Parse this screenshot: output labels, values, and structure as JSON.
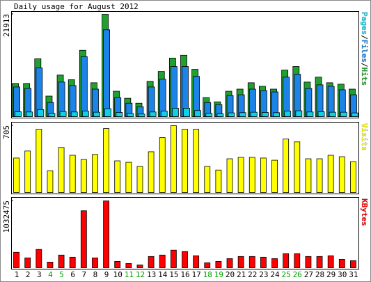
{
  "title": "Daily usage for August 2012",
  "legend_separator": "/",
  "highlight_categories": [
    "4",
    "5",
    "11",
    "12",
    "18",
    "19",
    "25",
    "26"
  ],
  "highlight_color": "#00a000",
  "chart_data": [
    {
      "type": "bar",
      "ylim": [
        0,
        21913
      ],
      "yticks": [
        21913
      ],
      "categories": [
        "1",
        "2",
        "3",
        "4",
        "5",
        "6",
        "7",
        "8",
        "9",
        "10",
        "11",
        "12",
        "13",
        "14",
        "15",
        "16",
        "17",
        "18",
        "19",
        "20",
        "21",
        "22",
        "23",
        "24",
        "25",
        "26",
        "27",
        "28",
        "29",
        "30",
        "31"
      ],
      "series": [
        {
          "name": "Hits",
          "color": "#20a030",
          "values": [
            7100,
            7100,
            12400,
            4400,
            8900,
            7900,
            14200,
            7250,
            21913,
            5440,
            3930,
            2870,
            7560,
            9670,
            12540,
            13150,
            10120,
            4080,
            3170,
            5440,
            5890,
            7250,
            6500,
            5890,
            9970,
            10730,
            7400,
            8460,
            7250,
            6950,
            5890
          ]
        },
        {
          "name": "Files",
          "color": "#1c84e8",
          "values": [
            6350,
            6040,
            10430,
            3020,
            7400,
            6650,
            12850,
            5890,
            18590,
            4080,
            2870,
            2120,
            6350,
            8010,
            10730,
            10730,
            8610,
            3020,
            2570,
            4530,
            4680,
            5890,
            5590,
            5290,
            8460,
            9070,
            6040,
            6800,
            6500,
            5740,
            4680
          ]
        },
        {
          "name": "Pages",
          "color": "#10d0e8",
          "values": [
            1050,
            1000,
            1500,
            700,
            1100,
            1000,
            1200,
            950,
            1700,
            900,
            650,
            550,
            1000,
            1200,
            1800,
            1800,
            1300,
            700,
            600,
            800,
            850,
            950,
            900,
            850,
            1200,
            1250,
            1000,
            1050,
            950,
            950,
            800
          ]
        }
      ]
    },
    {
      "type": "bar",
      "ylim": [
        0,
        705
      ],
      "yticks": [
        705
      ],
      "categories": [
        "1",
        "2",
        "3",
        "4",
        "5",
        "6",
        "7",
        "8",
        "9",
        "10",
        "11",
        "12",
        "13",
        "14",
        "15",
        "16",
        "17",
        "18",
        "19",
        "20",
        "21",
        "22",
        "23",
        "24",
        "25",
        "26",
        "27",
        "28",
        "29",
        "30",
        "31"
      ],
      "series": [
        {
          "name": "Visits",
          "color": "#ffff00",
          "values": [
            364,
            438,
            668,
            230,
            475,
            393,
            349,
            401,
            675,
            334,
            319,
            275,
            430,
            579,
            705,
            668,
            668,
            275,
            237,
            356,
            371,
            371,
            364,
            341,
            564,
            534,
            356,
            356,
            393,
            378,
            326
          ]
        }
      ]
    },
    {
      "type": "bar",
      "ylim": [
        0,
        1032475
      ],
      "yticks": [
        1032475
      ],
      "categories": [
        "1",
        "2",
        "3",
        "4",
        "5",
        "6",
        "7",
        "8",
        "9",
        "10",
        "11",
        "12",
        "13",
        "14",
        "15",
        "16",
        "17",
        "18",
        "19",
        "20",
        "21",
        "22",
        "23",
        "24",
        "25",
        "26",
        "27",
        "28",
        "29",
        "30",
        "31"
      ],
      "series": [
        {
          "name": "KBytes",
          "color": "#ff0000",
          "values": [
            239000,
            152000,
            283000,
            87000,
            196000,
            163000,
            880000,
            152000,
            1032475,
            98000,
            65000,
            43000,
            174000,
            196000,
            272000,
            250000,
            185000,
            76000,
            98000,
            141000,
            174000,
            174000,
            163000,
            141000,
            217000,
            217000,
            174000,
            174000,
            185000,
            130000,
            109000
          ]
        }
      ]
    }
  ]
}
